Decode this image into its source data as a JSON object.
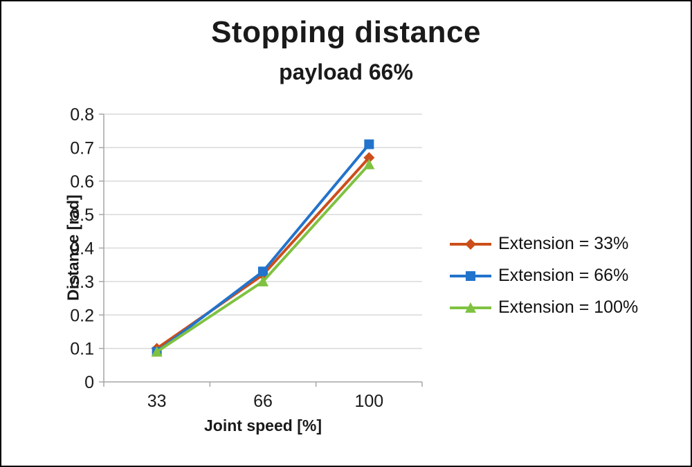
{
  "chart_data": {
    "type": "line",
    "title": "Stopping distance",
    "subtitle": "payload 66%",
    "categories": [
      "33",
      "66",
      "100"
    ],
    "series": [
      {
        "name": "Extension = 33%",
        "values": [
          0.1,
          0.32,
          0.67
        ],
        "color": "#CC4E1A",
        "marker": "diamond"
      },
      {
        "name": "Extension = 66%",
        "values": [
          0.09,
          0.33,
          0.71
        ],
        "color": "#2273CC",
        "marker": "square"
      },
      {
        "name": "Extension = 100%",
        "values": [
          0.09,
          0.3,
          0.65
        ],
        "color": "#7FC241",
        "marker": "triangle"
      }
    ],
    "xlabel": "Joint speed [%]",
    "ylabel": "Distance [rad]",
    "ylim": [
      0,
      0.8
    ],
    "ytick_step": 0.1,
    "grid": true,
    "legend_position": "right",
    "colors": {
      "gridline": "#D9D9D9",
      "axis_line": "#A6A6A6",
      "tick_text": "#1a1a1a",
      "background": "#ffffff"
    }
  }
}
